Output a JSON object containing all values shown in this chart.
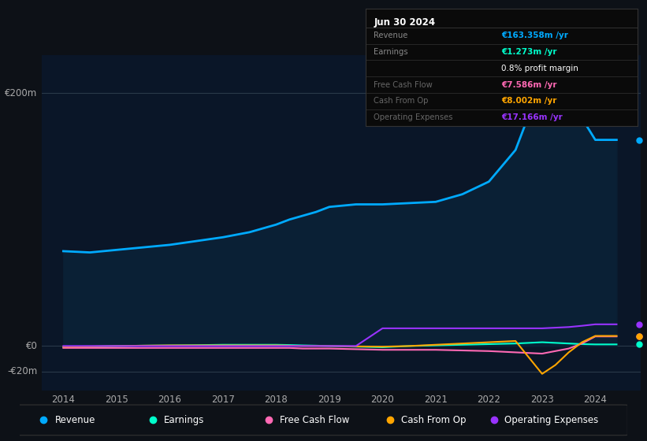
{
  "bg_color": "#0d1117",
  "chart_bg": "#0a1628",
  "title": "Jun 30 2024",
  "years": [
    2014,
    2014.5,
    2015,
    2015.5,
    2016,
    2016.5,
    2017,
    2017.5,
    2018,
    2018.25,
    2018.5,
    2018.75,
    2019,
    2019.5,
    2020,
    2020.5,
    2021,
    2021.5,
    2022,
    2022.5,
    2023,
    2023.25,
    2023.5,
    2023.75,
    2024,
    2024.4
  ],
  "revenue": [
    75,
    74,
    76,
    78,
    80,
    83,
    86,
    90,
    96,
    100,
    103,
    106,
    110,
    112,
    112,
    113,
    114,
    120,
    130,
    155,
    210,
    205,
    195,
    180,
    163,
    163
  ],
  "earnings": [
    -1,
    -0.5,
    0,
    0.3,
    0.5,
    0.7,
    1,
    1,
    1,
    0.8,
    0.5,
    0.3,
    0,
    -0.5,
    -1,
    0,
    0.5,
    1,
    1.5,
    2,
    3,
    2.5,
    2,
    1.5,
    1.273,
    1.273
  ],
  "free_cash_flow": [
    -1.5,
    -1.5,
    -1.5,
    -1.5,
    -1.5,
    -1.5,
    -1.5,
    -1.5,
    -1.5,
    -1.5,
    -2,
    -2,
    -2,
    -2.5,
    -3,
    -3,
    -3,
    -3.5,
    -4,
    -5,
    -6,
    -4,
    -2,
    2,
    7.586,
    7.586
  ],
  "cash_from_op": [
    -0.5,
    -0.3,
    0,
    0.3,
    0.5,
    0.5,
    0.5,
    0.5,
    0.5,
    0.3,
    0,
    0,
    0,
    -0.3,
    -0.5,
    0,
    1,
    2,
    3,
    4,
    -22,
    -15,
    -5,
    3,
    8.002,
    8.002
  ],
  "operating_expenses": [
    0,
    0,
    0,
    0,
    0,
    0,
    0,
    0,
    0,
    0,
    0,
    0,
    0,
    0,
    14,
    14,
    14,
    14,
    14,
    14,
    14,
    14.5,
    15,
    16,
    17.166,
    17.166
  ],
  "revenue_color": "#00aaff",
  "earnings_color": "#00ffcc",
  "free_cash_flow_color": "#ff69b4",
  "cash_from_op_color": "#ffa500",
  "operating_expenses_color": "#9933ff",
  "fill_color": "#0a2035",
  "ylim_min": -35,
  "ylim_max": 230,
  "xlim_min": 2013.6,
  "xlim_max": 2024.85,
  "ylabel_200": "€200m",
  "ylabel_0": "€0",
  "ylabel_n20": "-€20m",
  "xticks": [
    2014,
    2015,
    2016,
    2017,
    2018,
    2019,
    2020,
    2021,
    2022,
    2023,
    2024
  ],
  "info_box_bg": "#0a0a0a",
  "info_title": "Jun 30 2024",
  "info_rows": [
    {
      "label": "Revenue",
      "value": "€163.358m /yr",
      "value_color": "#00aaff",
      "label_color": "#888888"
    },
    {
      "label": "Earnings",
      "value": "€1.273m /yr",
      "value_color": "#00ffcc",
      "label_color": "#888888"
    },
    {
      "label": "",
      "value": "0.8% profit margin",
      "value_color": "#ffffff",
      "label_color": "#888888"
    },
    {
      "label": "Free Cash Flow",
      "value": "€7.586m /yr",
      "value_color": "#ff69b4",
      "label_color": "#666666"
    },
    {
      "label": "Cash From Op",
      "value": "€8.002m /yr",
      "value_color": "#ffa500",
      "label_color": "#666666"
    },
    {
      "label": "Operating Expenses",
      "value": "€17.166m /yr",
      "value_color": "#9933ff",
      "label_color": "#666666"
    }
  ],
  "legend_labels": [
    "Revenue",
    "Earnings",
    "Free Cash Flow",
    "Cash From Op",
    "Operating Expenses"
  ],
  "legend_colors": [
    "#00aaff",
    "#00ffcc",
    "#ff69b4",
    "#ffa500",
    "#9933ff"
  ]
}
